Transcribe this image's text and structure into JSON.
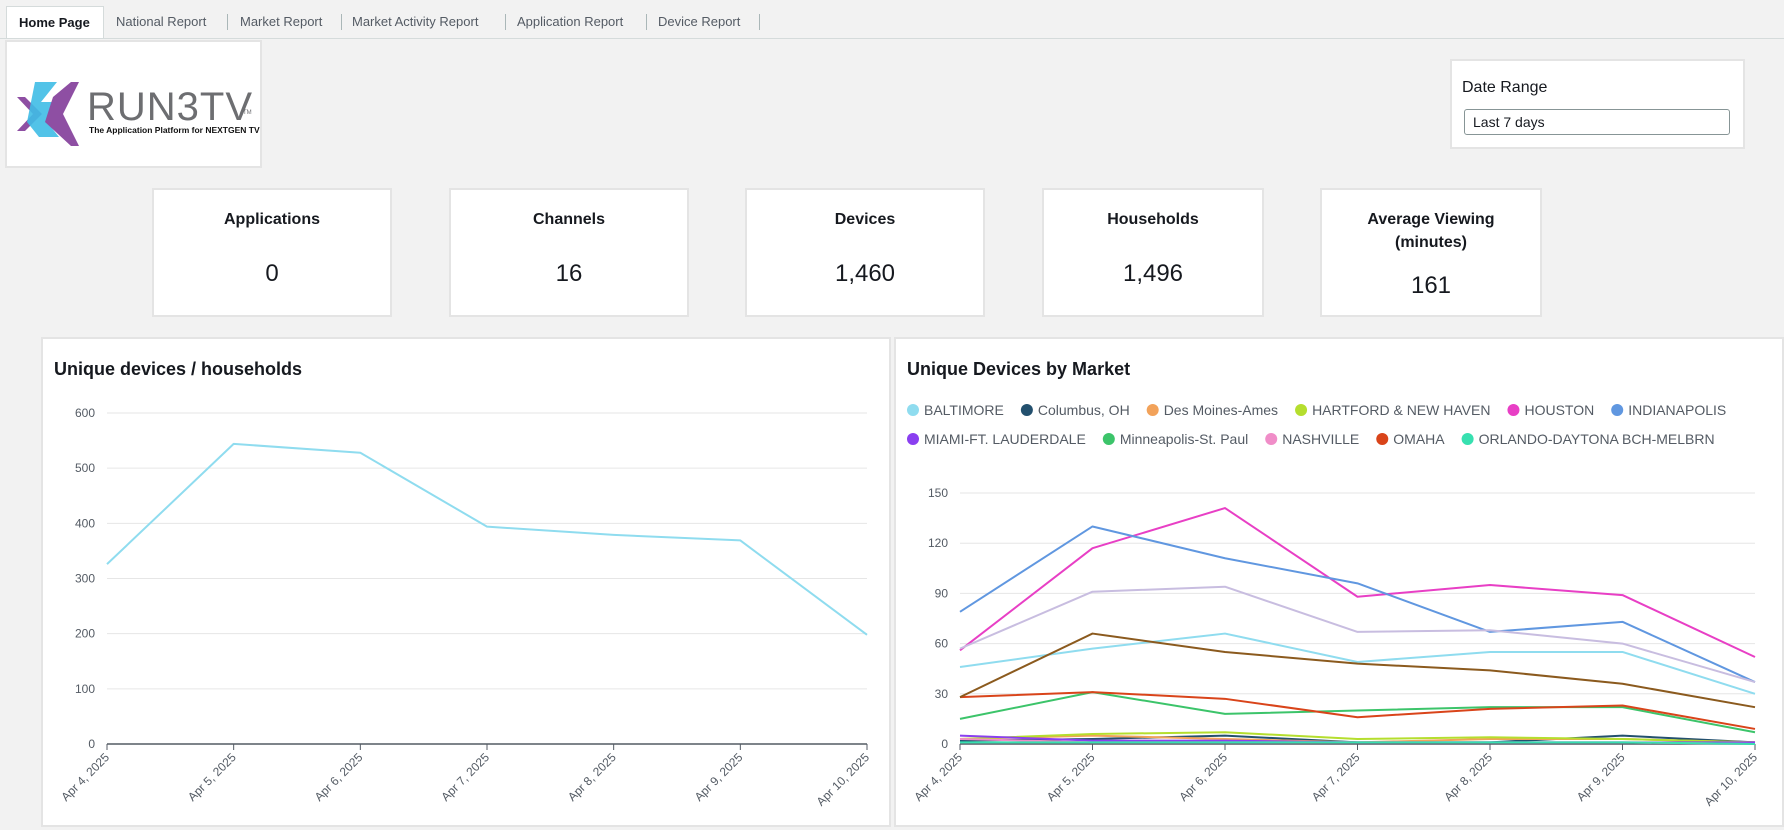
{
  "tabs": [
    "Home Page",
    "National Report",
    "Market Report",
    "Market Activity Report",
    "Application Report",
    "Device Report"
  ],
  "logo": {
    "wordmark": "RUN3TV",
    "trademark": "TM",
    "tagline": "The Application Platform for NEXTGEN TV"
  },
  "date_range": {
    "label": "Date Range",
    "value": "Last 7 days"
  },
  "kpis": [
    {
      "title": "Applications",
      "value": "0"
    },
    {
      "title": "Channels",
      "value": "16"
    },
    {
      "title": "Devices",
      "value": "1,460"
    },
    {
      "title": "Households",
      "value": "1,496"
    },
    {
      "title": "Average Viewing (minutes)",
      "value": "161"
    }
  ],
  "chart_data": [
    {
      "type": "line",
      "title": "Unique devices / households",
      "x": [
        "Apr 4, 2025",
        "Apr 5, 2025",
        "Apr 6, 2025",
        "Apr 7, 2025",
        "Apr 8, 2025",
        "Apr 9, 2025",
        "Apr 10, 2025"
      ],
      "series": [
        {
          "color": "#8fdcef",
          "values": [
            326,
            544,
            528,
            394,
            379,
            369,
            198
          ]
        }
      ],
      "ylim": [
        0,
        600
      ],
      "yticks": [
        0,
        100,
        200,
        300,
        400,
        500,
        600
      ],
      "grid": true
    },
    {
      "type": "line",
      "title": "Unique Devices by Market",
      "x": [
        "Apr 4, 2025",
        "Apr 5, 2025",
        "Apr 6, 2025",
        "Apr 7, 2025",
        "Apr 8, 2025",
        "Apr 9, 2025",
        "Apr 10, 2025"
      ],
      "series": [
        {
          "name": "BALTIMORE",
          "color": "#8fdcef",
          "values": [
            46,
            57,
            66,
            49,
            55,
            55,
            30
          ]
        },
        {
          "name": "Columbus, OH",
          "color": "#23506e",
          "values": [
            2,
            3,
            5,
            1,
            1,
            5,
            1
          ]
        },
        {
          "name": "Des Moines-Ames",
          "color": "#f2a25a",
          "values": [
            3,
            5,
            3,
            1,
            3,
            3,
            1
          ]
        },
        {
          "name": "HARTFORD & NEW HAVEN",
          "color": "#b5de2e",
          "values": [
            3,
            6,
            7,
            3,
            4,
            3,
            1
          ]
        },
        {
          "name": "HOUSTON",
          "color": "#e83fc5",
          "values": [
            56,
            117,
            141,
            88,
            95,
            89,
            52
          ]
        },
        {
          "name": "INDIANAPOLIS",
          "color": "#6097e0",
          "values": [
            79,
            130,
            111,
            96,
            67,
            73,
            37
          ]
        },
        {
          "name": "MIAMI-FT. LAUDERDALE",
          "color": "#8a3ff0",
          "values": [
            5,
            2,
            2,
            1,
            1,
            1,
            1
          ]
        },
        {
          "name": "Minneapolis-St. Paul",
          "color": "#3cc46a",
          "values": [
            15,
            31,
            18,
            20,
            22,
            22,
            7
          ]
        },
        {
          "name": "NASHVILLE",
          "color": "#f08dc8",
          "values": [
            3,
            1,
            1,
            1,
            1,
            1,
            0
          ]
        },
        {
          "name": "OMAHA",
          "color": "#d9441a",
          "values": [
            28,
            31,
            27,
            16,
            21,
            23,
            9
          ]
        },
        {
          "name": "ORLANDO-DAYTONA BCH-MELBRN",
          "color": "#37e0b0",
          "values": [
            1,
            1,
            1,
            1,
            1,
            1,
            0
          ]
        },
        {
          "color": "#c8bde0",
          "values": [
            57,
            91,
            94,
            67,
            68,
            60,
            37
          ]
        },
        {
          "color": "#8b5a1e",
          "values": [
            28,
            66,
            55,
            48,
            44,
            36,
            22
          ]
        }
      ],
      "ylim": [
        0,
        150
      ],
      "yticks": [
        0,
        30,
        60,
        90,
        120,
        150
      ],
      "grid": true,
      "legend": "top"
    }
  ]
}
